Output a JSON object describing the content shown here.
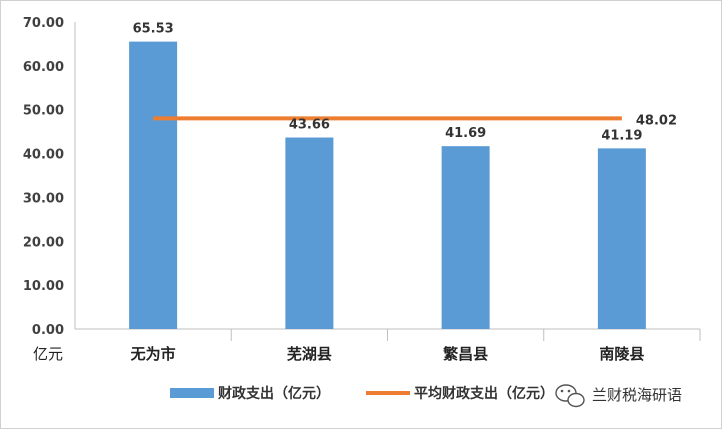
{
  "chart_data": {
    "type": "bar",
    "title": "",
    "categories": [
      "无为市",
      "芜湖县",
      "繁昌县",
      "南陵县"
    ],
    "series": [
      {
        "name": "财政支出（亿元）",
        "type": "bar",
        "values": [
          65.53,
          43.66,
          41.69,
          41.19
        ],
        "color": "#5b9bd5"
      },
      {
        "name": "平均财政支出（亿元）",
        "type": "line",
        "values": [
          48.02,
          48.02,
          48.02,
          48.02
        ],
        "color": "#ed7d31"
      }
    ],
    "data_labels": [
      "65.53",
      "43.66",
      "41.69",
      "41.19"
    ],
    "line_label": "48.02",
    "yticks": [
      "0.00",
      "10.00",
      "20.00",
      "30.00",
      "40.00",
      "50.00",
      "60.00",
      "70.00"
    ],
    "ylim": [
      0,
      70
    ],
    "ylabel_unit": "亿元",
    "xlabel": "",
    "grid": false,
    "legend_position": "bottom"
  },
  "watermark": {
    "text": "兰财税海研语",
    "icon": "wechat-icon"
  }
}
